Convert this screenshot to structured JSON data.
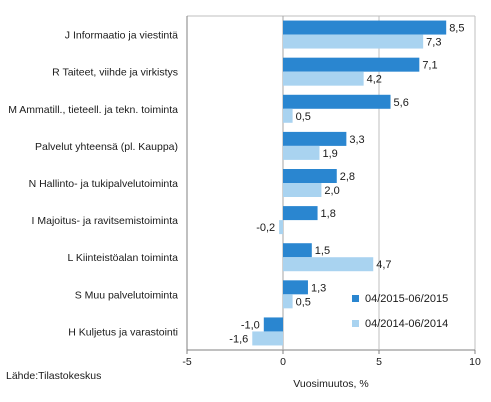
{
  "chart_data": {
    "type": "bar",
    "orientation": "horizontal",
    "categories": [
      "J Informaatio ja viestintä",
      "R Taiteet, viihde ja virkistys",
      "M Ammatill., tieteell. ja tekn. toiminta",
      "Palvelut yhteensä (pl. Kauppa)",
      "N Hallinto- ja tukipalvelutoiminta",
      "I Majoitus- ja ravitsemistoiminta",
      "L Kiinteistöalan toiminta",
      "S Muu palvelutoiminta",
      "H Kuljetus ja varastointi"
    ],
    "series": [
      {
        "name": "04/2015-06/2015",
        "color": "#2a86d0",
        "values": [
          8.5,
          7.1,
          5.6,
          3.3,
          2.8,
          1.8,
          1.5,
          1.3,
          -1.0
        ],
        "labels": [
          "8,5",
          "7,1",
          "5,6",
          "3,3",
          "2,8",
          "1,8",
          "1,5",
          "1,3",
          "-1,0"
        ]
      },
      {
        "name": "04/2014-06/2014",
        "color": "#a9d3f0",
        "values": [
          7.3,
          4.2,
          0.5,
          1.9,
          2.0,
          -0.2,
          4.7,
          0.5,
          -1.6
        ],
        "labels": [
          "7,3",
          "4,2",
          "0,5",
          "1,9",
          "2,0",
          "-0,2",
          "4,7",
          "0,5",
          "-1,6"
        ]
      }
    ],
    "xlim": [
      -5,
      10
    ],
    "xticks": [
      -5,
      0,
      5,
      10
    ],
    "xtick_labels": [
      "-5",
      "0",
      "5",
      "10"
    ],
    "xlabel": "Vuosimuutos, %",
    "grid": "vertical at 5",
    "legend_position": "bottom-right"
  },
  "source": "Lähde:Tilastokeskus"
}
